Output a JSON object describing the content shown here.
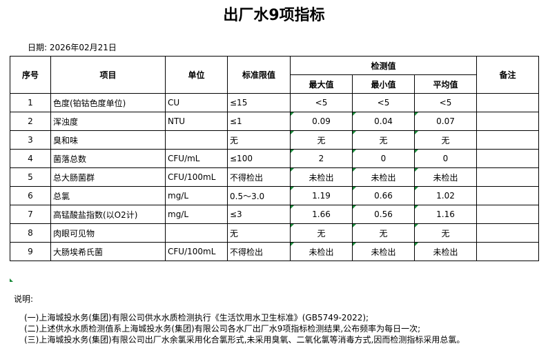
{
  "title": "出厂水9项指标",
  "date": "日期: 2026年02月21日",
  "headers": {
    "no": "序号",
    "item": "项目",
    "unit": "单位",
    "limit": "标准限值",
    "measured": "检测值",
    "max": "最大值",
    "min": "最小值",
    "avg": "平均值",
    "remark": "备注"
  },
  "rows": [
    [
      "1",
      "色度(铂钴色度单位)",
      "CU",
      "≤15",
      "<5",
      "<5",
      "<5"
    ],
    [
      "2",
      "浑浊度",
      "NTU",
      "≤1",
      "0.09",
      "0.04",
      "0.07"
    ],
    [
      "3",
      "臭和味",
      "",
      "无",
      "无",
      "无",
      "无"
    ],
    [
      "4",
      "菌落总数",
      "CFU/mL",
      "≤100",
      "2",
      "0",
      "0"
    ],
    [
      "5",
      "总大肠菌群",
      "CFU/100mL",
      "不得检出",
      "未检出",
      "未检出",
      "未检出"
    ],
    [
      "6",
      "总氯",
      "mg/L",
      "0.5～3.0",
      "1.19",
      "0.66",
      "1.02"
    ],
    [
      "7",
      "高锰酸盐指数(以O2计)",
      "mg/L",
      "≤3",
      "1.66",
      "0.56",
      "1.16"
    ],
    [
      "8",
      "肉眼可见物",
      "",
      "无",
      "无",
      "无",
      "无"
    ],
    [
      "9",
      "大肠埃希氏菌",
      "CFU/100mL",
      "不得检出",
      "未检出",
      "未检出",
      "未检出"
    ]
  ],
  "notes_title": "说明:",
  "notes": [
    "(一)上海城投水务(集团)有限公司供水水质检测执行《生活饮用水卫生标准》(GB5749-2022);",
    "(二)上述供水水质检测值系上海城投水务(集团)有限公司各水厂出厂水9项指标检测结果,公布频率为每日一次;",
    "(三)上海城投水务(集团)有限公司出厂水余氯采用化合氯形式,未采用臭氧、二氧化氯等消毒方式,因而检测指标采用总氯。"
  ]
}
